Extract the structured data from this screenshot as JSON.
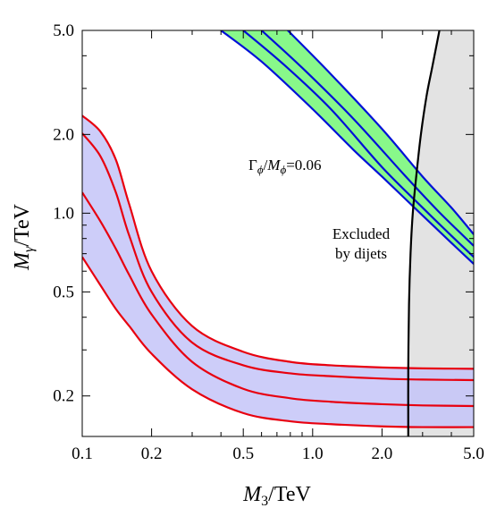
{
  "chart_data": {
    "type": "line",
    "title": "",
    "x_scale": "log",
    "y_scale": "log",
    "xlim": [
      0.1,
      5.0
    ],
    "ylim": [
      0.14,
      5.0
    ],
    "xticks": [
      {
        "value": 0.1,
        "label": "0.1"
      },
      {
        "value": 0.2,
        "label": "0.2"
      },
      {
        "value": 0.5,
        "label": "0.5"
      },
      {
        "value": 1.0,
        "label": "1.0"
      },
      {
        "value": 2.0,
        "label": "2.0"
      },
      {
        "value": 5.0,
        "label": "5.0"
      }
    ],
    "yticks": [
      {
        "value": 0.2,
        "label": "0.2"
      },
      {
        "value": 0.5,
        "label": "0.5"
      },
      {
        "value": 1.0,
        "label": "1.0"
      },
      {
        "value": 2.0,
        "label": "2.0"
      },
      {
        "value": 5.0,
        "label": "5.0"
      }
    ],
    "xlabel": {
      "main": "M",
      "sub": "3",
      "rest": "/TeV"
    },
    "ylabel": {
      "main": "M",
      "sub": "γ",
      "rest": "/TeV"
    },
    "grid": false,
    "colors": {
      "red_curves": "#e8000f",
      "red_band_fill": "#c4c4f8",
      "blue_curves": "#0010d8",
      "green_band_fill": "#88f88a",
      "excluded_fill": "#e3e3e3",
      "boundary": "#000000"
    },
    "red_band": {
      "curves": [
        {
          "x": [
            0.1,
            0.12,
            0.14,
            0.16,
            0.2,
            0.3,
            0.5,
            0.8,
            1.2,
            2.0,
            3.0,
            5.0
          ],
          "y": [
            2.36,
            2.05,
            1.6,
            1.08,
            0.6,
            0.37,
            0.295,
            0.27,
            0.262,
            0.257,
            0.255,
            0.254
          ]
        },
        {
          "x": [
            0.1,
            0.12,
            0.14,
            0.16,
            0.2,
            0.3,
            0.5,
            0.8,
            1.2,
            2.0,
            3.0,
            5.0
          ],
          "y": [
            2.02,
            1.65,
            1.2,
            0.82,
            0.5,
            0.32,
            0.262,
            0.244,
            0.238,
            0.233,
            0.231,
            0.23
          ]
        },
        {
          "x": [
            0.1,
            0.12,
            0.14,
            0.16,
            0.2,
            0.3,
            0.5,
            0.8,
            1.2,
            2.0,
            3.0,
            5.0
          ],
          "y": [
            1.2,
            0.93,
            0.73,
            0.58,
            0.41,
            0.27,
            0.213,
            0.196,
            0.19,
            0.186,
            0.184,
            0.183
          ]
        },
        {
          "x": [
            0.1,
            0.12,
            0.14,
            0.16,
            0.2,
            0.3,
            0.5,
            0.8,
            1.2,
            2.0,
            3.0,
            5.0
          ],
          "y": [
            0.68,
            0.53,
            0.43,
            0.37,
            0.29,
            0.212,
            0.172,
            0.16,
            0.156,
            0.153,
            0.152,
            0.152
          ]
        }
      ]
    },
    "green_band": {
      "curves": [
        {
          "x": [
            0.4,
            0.6,
            1.0,
            1.5,
            2.0,
            3.0,
            4.0,
            5.0
          ],
          "y": [
            5.0,
            3.8,
            2.5,
            1.75,
            1.38,
            0.98,
            0.77,
            0.64
          ]
        },
        {
          "x": [
            0.5,
            0.75,
            1.2,
            2.0,
            3.0,
            4.0,
            5.0
          ],
          "y": [
            5.0,
            3.7,
            2.5,
            1.5,
            1.05,
            0.82,
            0.68
          ]
        },
        {
          "x": [
            0.6,
            0.9,
            1.5,
            2.5,
            3.5,
            5.0
          ],
          "y": [
            5.0,
            3.6,
            2.3,
            1.4,
            1.02,
            0.75
          ]
        },
        {
          "x": [
            0.78,
            1.2,
            2.0,
            3.0,
            4.0,
            5.0
          ],
          "y": [
            5.0,
            3.4,
            2.1,
            1.38,
            1.05,
            0.83
          ]
        }
      ],
      "label": {
        "gamma": "Γ",
        "gamma_sub": "ϕ",
        "m": "M",
        "m_sub": "ϕ",
        "value": "=0.06"
      }
    },
    "excluded_region": {
      "boundary": {
        "x": [
          2.6,
          2.6,
          2.62,
          2.66,
          2.72,
          2.82,
          2.95,
          3.12,
          3.3,
          3.55
        ],
        "y": [
          0.14,
          0.25,
          0.45,
          0.7,
          1.0,
          1.4,
          2.0,
          2.8,
          3.6,
          5.0
        ]
      },
      "x_max": 5.0,
      "label_lines": [
        "Excluded",
        "by dijets"
      ]
    }
  }
}
